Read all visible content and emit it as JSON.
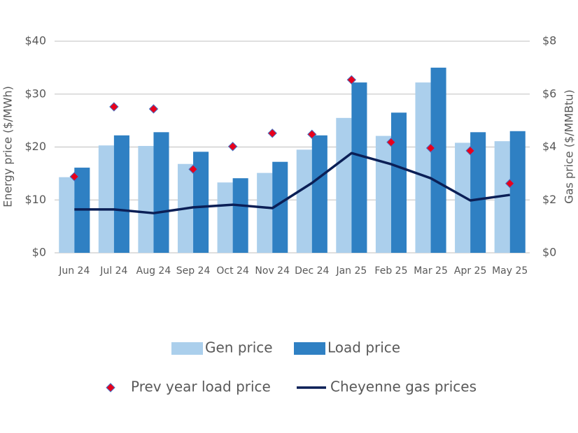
{
  "chart_data": {
    "type": "combo",
    "y_label": "Energy price ($/MWh)",
    "y2_label": "Gas price ($/MMBtu)",
    "categories": [
      "Jun 24",
      "Jul 24",
      "Aug 24",
      "Sep 24",
      "Oct 24",
      "Nov 24",
      "Dec 24",
      "Jan 25",
      "Feb 25",
      "Mar 25",
      "Apr 25",
      "May 25"
    ],
    "series": [
      {
        "name": "Gen price",
        "type": "bar",
        "color": "#abcfec",
        "values": [
          14.3,
          20.3,
          20.2,
          16.8,
          13.3,
          15.1,
          19.5,
          25.5,
          22.1,
          32.2,
          20.8,
          21.1
        ]
      },
      {
        "name": "Load price",
        "type": "bar",
        "color": "#2f80c3",
        "values": [
          16.1,
          22.2,
          22.8,
          19.1,
          14.1,
          17.2,
          22.2,
          32.2,
          26.5,
          35.0,
          22.8,
          23.0
        ]
      },
      {
        "name": "Prev year load price",
        "type": "scatter",
        "color": "#e8001c",
        "values": [
          14.4,
          27.6,
          27.2,
          15.8,
          20.1,
          22.6,
          22.4,
          32.7,
          20.9,
          19.8,
          19.3,
          13.1
        ]
      },
      {
        "name": "Cheyenne gas prices",
        "type": "line",
        "color": "#0b1f56",
        "axis": "y2",
        "values": [
          1.64,
          1.64,
          1.5,
          1.72,
          1.82,
          1.69,
          2.64,
          3.77,
          3.35,
          2.82,
          1.98,
          2.19
        ]
      }
    ],
    "ylim": [
      0,
      40
    ],
    "yticks": [
      {
        "value": 0,
        "label": "$0"
      },
      {
        "value": 10,
        "label": "$10"
      },
      {
        "value": 20,
        "label": "$20"
      },
      {
        "value": 30,
        "label": "$30"
      },
      {
        "value": 40,
        "label": "$40"
      }
    ],
    "y2lim": [
      0,
      8
    ],
    "y2ticks": [
      {
        "value": 0,
        "label": "$0"
      },
      {
        "value": 2,
        "label": "$2"
      },
      {
        "value": 4,
        "label": "$4"
      },
      {
        "value": 6,
        "label": "$6"
      },
      {
        "value": 8,
        "label": "$8"
      }
    ],
    "grid": true
  }
}
